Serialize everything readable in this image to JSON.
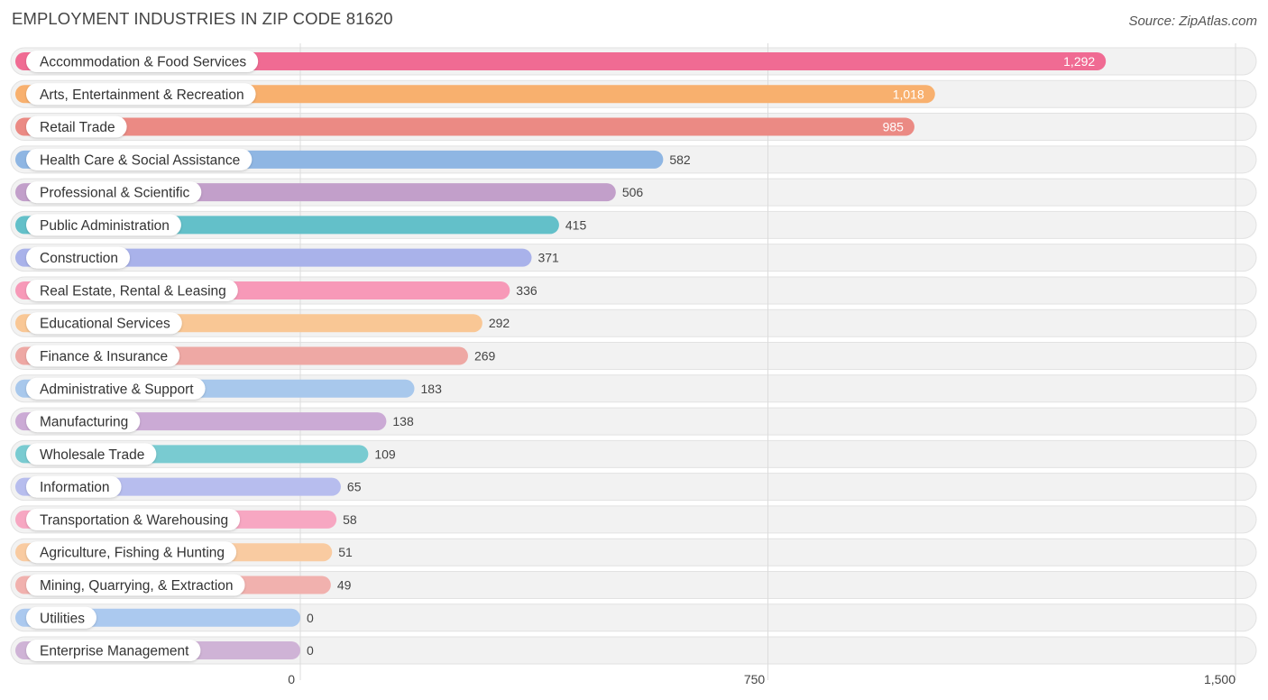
{
  "header": {
    "title": "EMPLOYMENT INDUSTRIES IN ZIP CODE 81620",
    "source": "Source: ZipAtlas.com"
  },
  "chart_data": {
    "type": "bar",
    "orientation": "horizontal",
    "title": "EMPLOYMENT INDUSTRIES IN ZIP CODE 81620",
    "xlim": [
      0,
      1500
    ],
    "ticks": [
      0,
      750,
      1500
    ],
    "tick_labels": [
      "0",
      "750",
      "1,500"
    ],
    "grid": true,
    "categories": [
      "Accommodation & Food Services",
      "Arts, Entertainment & Recreation",
      "Retail Trade",
      "Health Care & Social Assistance",
      "Professional & Scientific",
      "Public Administration",
      "Construction",
      "Real Estate, Rental & Leasing",
      "Educational Services",
      "Finance & Insurance",
      "Administrative & Support",
      "Manufacturing",
      "Wholesale Trade",
      "Information",
      "Transportation & Warehousing",
      "Agriculture, Fishing & Hunting",
      "Mining, Quarrying, & Extraction",
      "Utilities",
      "Enterprise Management"
    ],
    "values": [
      1292,
      1018,
      985,
      582,
      506,
      415,
      371,
      336,
      292,
      269,
      183,
      138,
      109,
      65,
      58,
      51,
      49,
      0,
      0
    ],
    "value_labels": [
      "1,292",
      "1,018",
      "985",
      "582",
      "506",
      "415",
      "371",
      "336",
      "292",
      "269",
      "183",
      "138",
      "109",
      "65",
      "58",
      "51",
      "49",
      "0",
      "0"
    ],
    "colors": [
      "#f06b93",
      "#f8b06e",
      "#eb8a84",
      "#8fb6e3",
      "#c29fca",
      "#63c0c9",
      "#a9b2ea",
      "#f799b8",
      "#f9c795",
      "#eea8a4",
      "#a8c8ec",
      "#cbaad5",
      "#79cbd1",
      "#b7bdee",
      "#f7a7c2",
      "#f9cba1",
      "#f1b1ae",
      "#abc9ef",
      "#cfb3d6"
    ]
  }
}
